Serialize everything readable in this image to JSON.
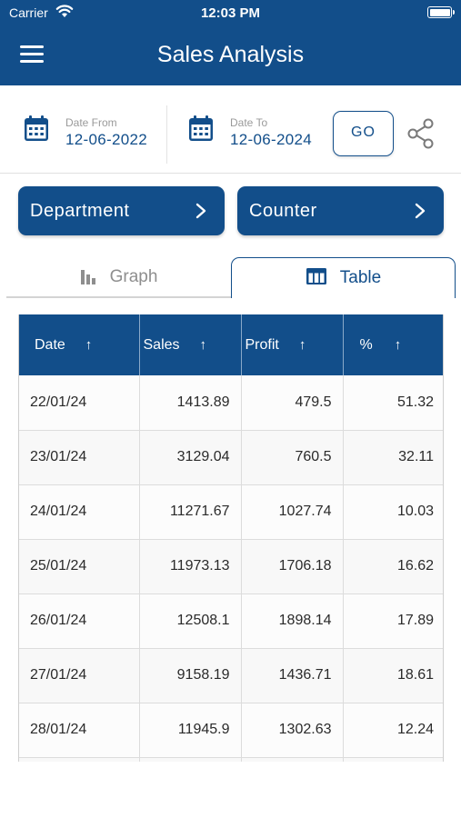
{
  "status_bar": {
    "carrier": "Carrier",
    "time": "12:03 PM"
  },
  "app_bar": {
    "title": "Sales Analysis"
  },
  "dates": {
    "from_label": "Date From",
    "from_value": "12-06-2022",
    "to_label": "Date To",
    "to_value": "12-06-2024",
    "go_label": "GO"
  },
  "filters": {
    "department_label": "Department",
    "counter_label": "Counter"
  },
  "tabs": {
    "graph_label": "Graph",
    "table_label": "Table",
    "active": "Table"
  },
  "colors": {
    "primary": "#124e8a",
    "inactive_tab": "#8e8e8e"
  },
  "icons": [
    "hamburger-menu-icon",
    "wifi-icon",
    "battery-icon",
    "calendar-icon",
    "share-icon",
    "chevron-right-icon",
    "bar-chart-icon",
    "table-icon",
    "sort-up-arrow-icon"
  ],
  "table": {
    "headers": [
      "Date",
      "Sales",
      "Profit",
      "%"
    ],
    "sort_arrow": "↑",
    "rows": [
      [
        "22/01/24",
        "1413.89",
        "479.5",
        "51.32"
      ],
      [
        "23/01/24",
        "3129.04",
        "760.5",
        "32.11"
      ],
      [
        "24/01/24",
        "11271.67",
        "1027.74",
        "10.03"
      ],
      [
        "25/01/24",
        "11973.13",
        "1706.18",
        "16.62"
      ],
      [
        "26/01/24",
        "12508.1",
        "1898.14",
        "17.89"
      ],
      [
        "27/01/24",
        "9158.19",
        "1436.71",
        "18.61"
      ],
      [
        "28/01/24",
        "11945.9",
        "1302.63",
        "12.24"
      ]
    ]
  }
}
